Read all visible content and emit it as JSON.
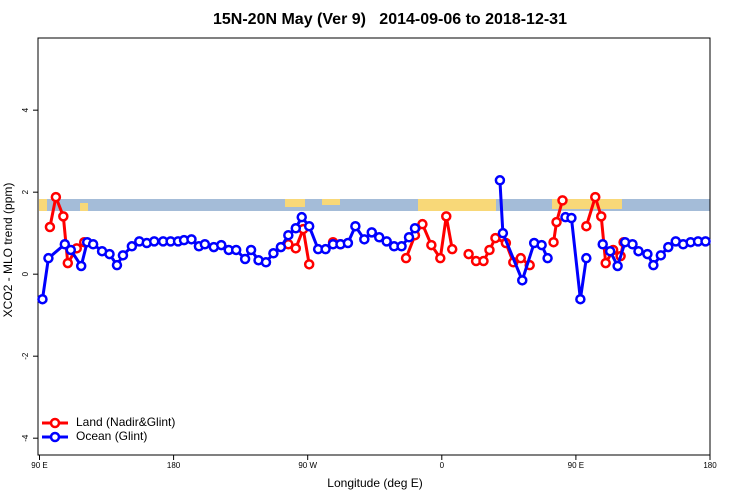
{
  "chart_data": {
    "type": "line",
    "title": "15N-20N May (Ver 9)   2014-09-06 to 2018-12-31",
    "xlabel": "Longitude (deg E)",
    "ylabel": "XCO2 - MLO trend (ppm)",
    "xlim": [
      89,
      540
    ],
    "ylim": [
      -4.41,
      5.76
    ],
    "xticks": [
      {
        "value": 90,
        "label": "90 E"
      },
      {
        "value": 180,
        "label": "180"
      },
      {
        "value": 270,
        "label": "90 W"
      },
      {
        "value": 360,
        "label": "0"
      },
      {
        "value": 450,
        "label": "90 E"
      },
      {
        "value": 540,
        "label": "180"
      }
    ],
    "yticks": [
      -4,
      -2,
      0,
      2,
      4
    ],
    "legend": "bottom-left",
    "series": [
      {
        "name": "Land (Nadir&Glint)",
        "color": "#ff0000",
        "x": [
          97,
          101,
          106,
          109,
          115,
          120,
          190,
          257,
          262,
          267,
          271,
          280,
          287,
          292,
          315,
          336,
          342,
          347,
          353,
          359,
          363,
          367,
          372,
          378,
          383,
          388,
          392,
          396,
          403,
          408,
          413,
          419,
          427,
          435,
          437,
          441,
          450,
          457,
          463,
          467,
          470,
          475,
          480,
          482
        ],
        "values": [
          1.15,
          1.88,
          1.41,
          0.27,
          0.63,
          0.78,
          null,
          0.73,
          0.63,
          1.1,
          0.24,
          null,
          0.78,
          0.73,
          null,
          0.39,
          0.95,
          1.22,
          0.71,
          0.39,
          1.41,
          0.61,
          null,
          0.49,
          0.32,
          0.32,
          0.59,
          0.88,
          0.76,
          0.29,
          0.39,
          0.22,
          null,
          0.78,
          1.27,
          1.8,
          null,
          1.17,
          1.88,
          1.41,
          0.27,
          0.59,
          0.44,
          0.78
        ]
      },
      {
        "name": "Ocean (Glint)",
        "color": "#0000ff",
        "x": [
          92,
          96,
          107,
          111,
          118,
          122,
          126,
          132,
          137,
          142,
          146,
          152,
          157,
          162,
          167,
          173,
          178,
          183,
          187,
          192,
          197,
          201,
          207,
          212,
          217,
          222,
          228,
          232,
          237,
          242,
          247,
          252,
          257,
          262,
          266,
          271,
          277,
          282,
          287,
          292,
          297,
          302,
          308,
          313,
          318,
          323,
          328,
          333,
          338,
          342,
          370,
          399,
          401,
          414,
          422,
          427,
          431,
          437,
          443,
          447,
          453,
          457,
          462,
          468,
          473,
          478,
          483,
          488,
          492,
          498,
          502,
          507,
          512,
          517,
          522,
          527,
          532,
          537
        ],
        "values": [
          -0.61,
          0.39,
          0.73,
          0.59,
          0.2,
          0.78,
          0.73,
          0.56,
          0.49,
          0.22,
          0.46,
          0.68,
          0.8,
          0.76,
          0.8,
          0.8,
          0.8,
          0.8,
          0.83,
          0.85,
          0.68,
          0.73,
          0.66,
          0.71,
          0.59,
          0.59,
          0.37,
          0.59,
          0.34,
          0.29,
          0.51,
          0.66,
          0.95,
          1.12,
          1.39,
          1.17,
          0.61,
          0.61,
          0.73,
          0.73,
          0.76,
          1.17,
          0.85,
          1.02,
          0.9,
          0.8,
          0.68,
          0.68,
          0.9,
          1.12,
          null,
          2.29,
          1.0,
          -0.15,
          0.76,
          0.71,
          0.39,
          null,
          1.39,
          1.37,
          -0.61,
          0.39,
          null,
          0.73,
          0.56,
          0.2,
          0.78,
          0.73,
          0.56,
          0.49,
          0.22,
          0.46,
          0.66,
          0.8,
          0.73,
          0.78,
          0.8,
          0.8
        ]
      }
    ]
  }
}
